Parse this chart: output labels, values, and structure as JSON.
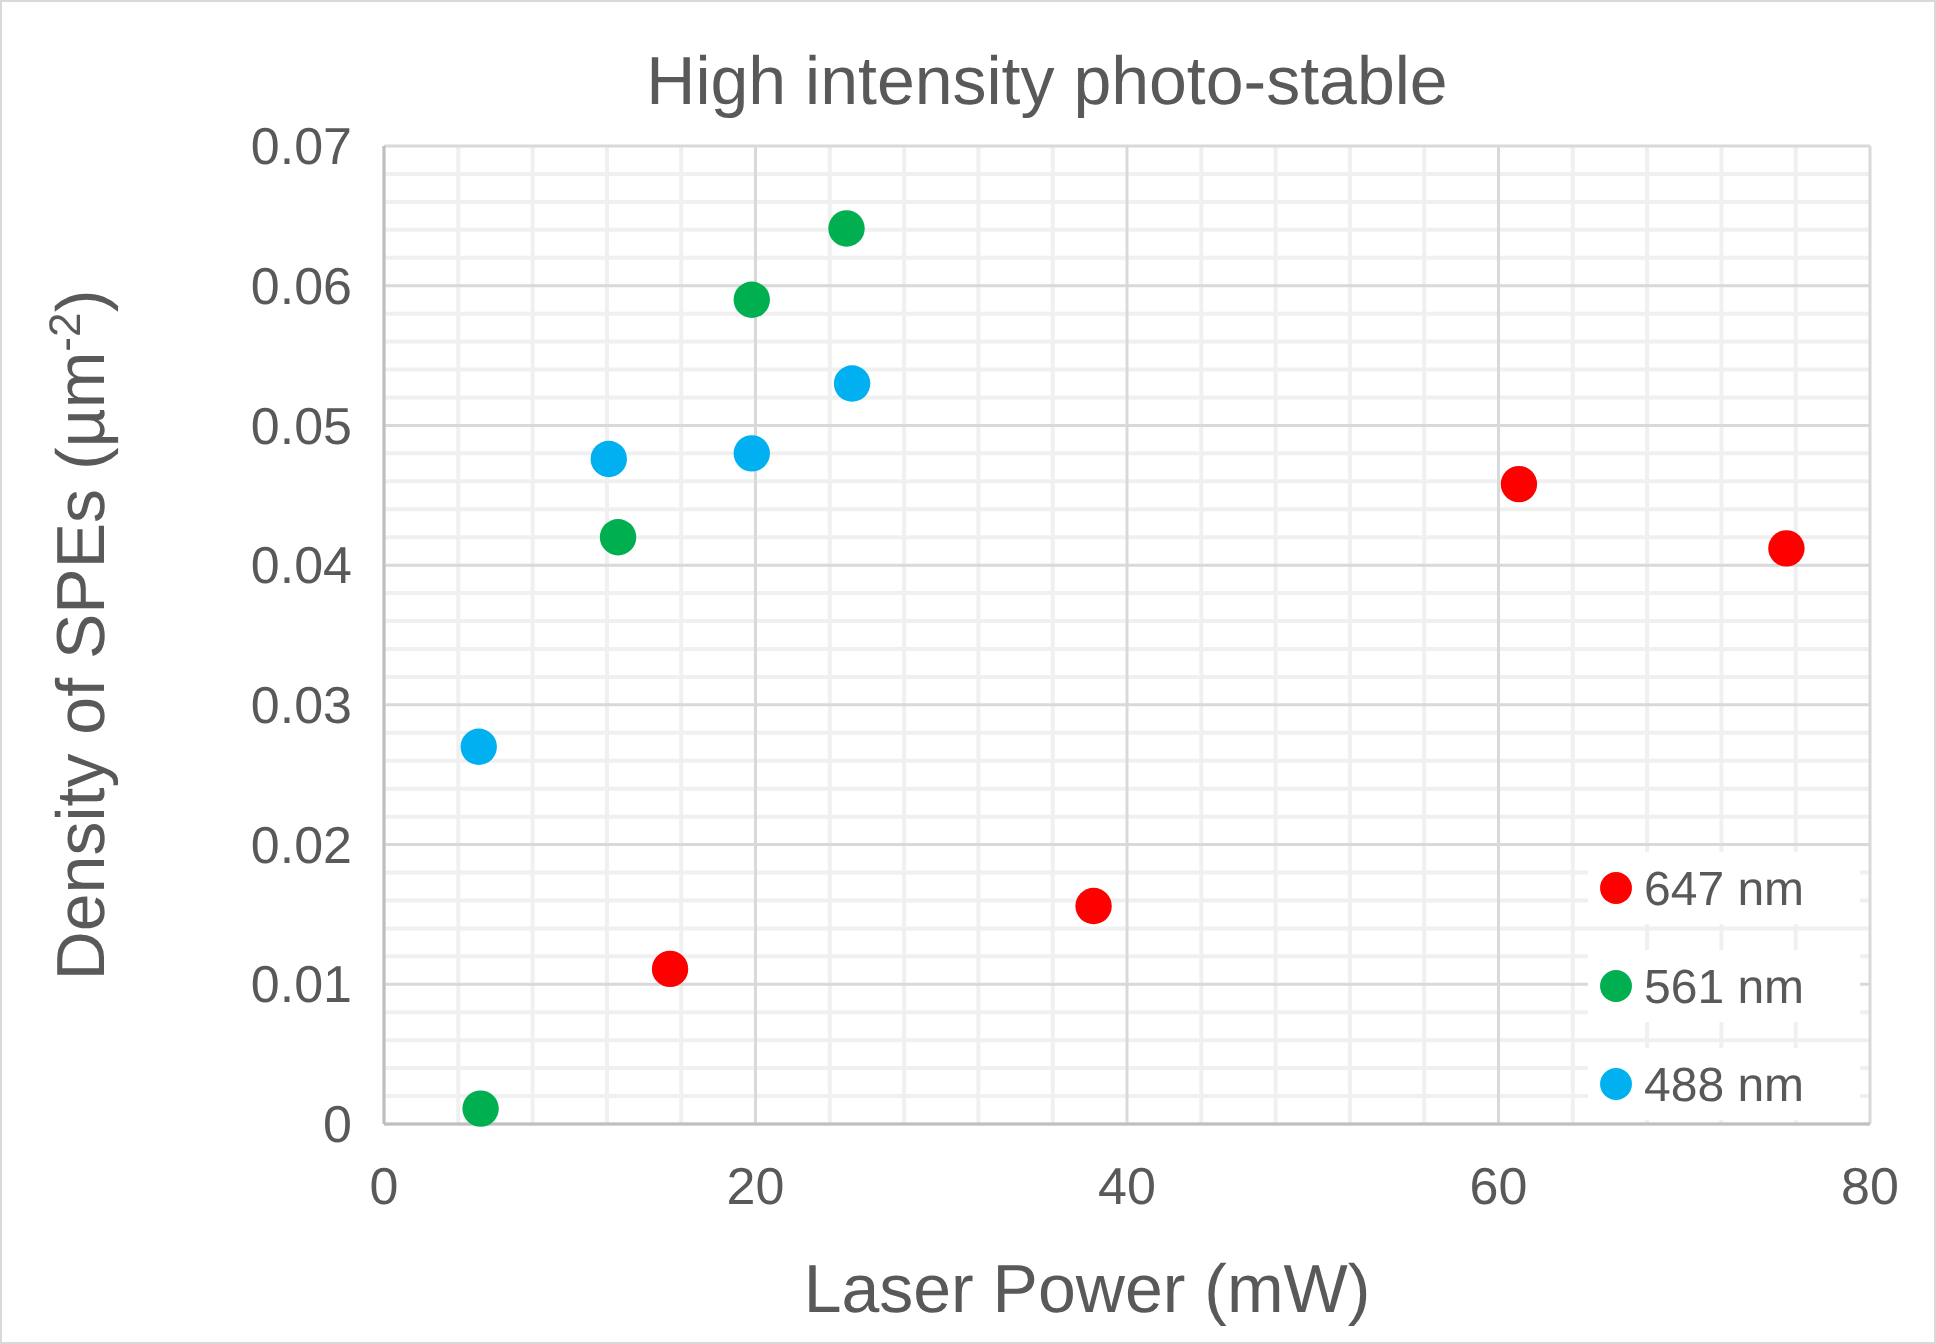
{
  "chart_data": {
    "type": "scatter",
    "title": "High intensity photo-stable",
    "xlabel": "Laser Power (mW)",
    "ylabel": "Density of SPEs (µm$^{-2}$)",
    "xlim": [
      0,
      80
    ],
    "xticks": [
      0,
      20,
      40,
      60,
      80
    ],
    "ylim": [
      0,
      0.07
    ],
    "yticks": [
      0,
      0.01,
      0.02,
      0.03,
      0.04,
      0.05,
      0.06,
      0.07
    ],
    "grid": true,
    "legend": "bottom right",
    "marker": "circle",
    "series": [
      {
        "name": "647 nm",
        "color": "#ff0000",
        "x": [
          15.4,
          38.2,
          61.1,
          75.5
        ],
        "values": [
          0.0111,
          0.0156,
          0.0458,
          0.0412
        ]
      },
      {
        "name": "561 nm",
        "color": "#00b050",
        "x": [
          5.2,
          12.6,
          19.8,
          24.9
        ],
        "values": [
          0.0011,
          0.042,
          0.059,
          0.0641
        ]
      },
      {
        "name": "488 nm",
        "color": "#00b0f0",
        "x": [
          5.1,
          12.1,
          19.8,
          25.2
        ],
        "values": [
          0.027,
          0.0476,
          0.048,
          0.053
        ]
      }
    ]
  }
}
